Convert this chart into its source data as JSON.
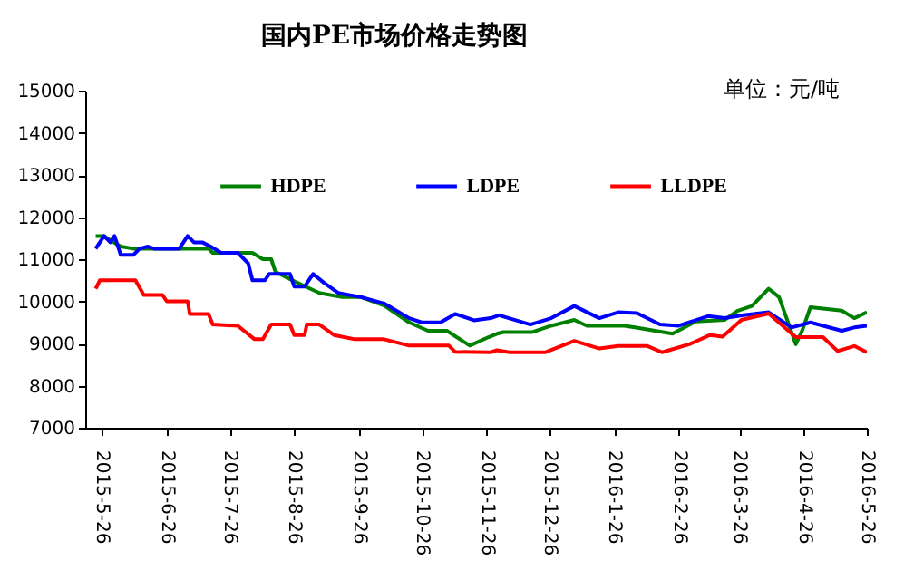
{
  "chart_data": {
    "type": "line",
    "title": "国内PE市场价格走势图",
    "annotations": [
      "单位：元/吨"
    ],
    "xlim": [
      "2015-05-18",
      "2016-05-26"
    ],
    "xticks": [
      {
        "value": "2015-05-26",
        "label": "2015-5-26"
      },
      {
        "value": "2015-06-26",
        "label": "2015-6-26"
      },
      {
        "value": "2015-07-26",
        "label": "2015-7-26"
      },
      {
        "value": "2015-08-26",
        "label": "2015-8-26"
      },
      {
        "value": "2015-09-26",
        "label": "2015-9-26"
      },
      {
        "value": "2015-10-26",
        "label": "2015-10-26"
      },
      {
        "value": "2015-11-26",
        "label": "2015-11-26"
      },
      {
        "value": "2015-12-26",
        "label": "2015-12-26"
      },
      {
        "value": "2016-01-26",
        "label": "2016-1-26"
      },
      {
        "value": "2016-02-26",
        "label": "2016-2-26"
      },
      {
        "value": "2016-03-26",
        "label": "2016-3-26"
      },
      {
        "value": "2016-04-26",
        "label": "2016-4-26"
      },
      {
        "value": "2016-05-26",
        "label": "2016-5-26"
      }
    ],
    "ylim": [
      7000,
      15000
    ],
    "yticks": [
      7000,
      8000,
      9000,
      10000,
      11000,
      12000,
      13000,
      14000,
      15000
    ],
    "grid": false,
    "legend": "top",
    "marker": "none",
    "line_style": "solid",
    "series": [
      {
        "name": "HDPE",
        "color": "#008000",
        "x": [
          "2015-05-23",
          "2015-05-27",
          "2015-05-30",
          "2015-06-04",
          "2015-06-10",
          "2015-07-16",
          "2015-07-18",
          "2015-08-06",
          "2015-08-11",
          "2015-08-15",
          "2015-08-17",
          "2015-08-25",
          "2015-09-07",
          "2015-09-18",
          "2015-09-27",
          "2015-10-08",
          "2015-10-20",
          "2015-10-29",
          "2015-11-07",
          "2015-11-18",
          "2015-11-27",
          "2015-12-01",
          "2015-12-04",
          "2015-12-18",
          "2015-12-27",
          "2016-01-07",
          "2016-01-13",
          "2016-01-31",
          "2016-02-05",
          "2016-02-23",
          "2016-03-05",
          "2016-03-19",
          "2016-03-25",
          "2016-04-01",
          "2016-04-09",
          "2016-04-14",
          "2016-04-22",
          "2016-04-25",
          "2016-04-29",
          "2016-05-14",
          "2016-05-20",
          "2016-05-26"
        ],
        "values": [
          11550,
          11550,
          11450,
          11300,
          11250,
          11250,
          11150,
          11150,
          11000,
          11000,
          10700,
          10500,
          10200,
          10100,
          10100,
          9900,
          9500,
          9300,
          9300,
          8950,
          9150,
          9230,
          9270,
          9270,
          9420,
          9560,
          9420,
          9420,
          9380,
          9230,
          9520,
          9560,
          9770,
          9890,
          10300,
          10100,
          8980,
          9300,
          9860,
          9780,
          9600,
          9740
        ]
      },
      {
        "name": "LDPE",
        "color": "#0000ff",
        "x": [
          "2015-05-23",
          "2015-05-27",
          "2015-05-30",
          "2015-06-01",
          "2015-06-04",
          "2015-06-10",
          "2015-06-13",
          "2015-06-17",
          "2015-06-20",
          "2015-07-02",
          "2015-07-06",
          "2015-07-09",
          "2015-07-13",
          "2015-07-17",
          "2015-07-22",
          "2015-07-30",
          "2015-08-04",
          "2015-08-06",
          "2015-08-12",
          "2015-08-14",
          "2015-08-24",
          "2015-08-26",
          "2015-08-31",
          "2015-09-04",
          "2015-09-09",
          "2015-09-16",
          "2015-09-27",
          "2015-10-08",
          "2015-10-20",
          "2015-10-26",
          "2015-11-04",
          "2015-11-11",
          "2015-11-20",
          "2015-11-28",
          "2015-12-02",
          "2015-12-17",
          "2015-12-27",
          "2016-01-07",
          "2016-01-19",
          "2016-01-28",
          "2016-02-06",
          "2016-02-17",
          "2016-02-26",
          "2016-03-11",
          "2016-03-19",
          "2016-03-28",
          "2016-04-09",
          "2016-04-20",
          "2016-04-29",
          "2016-05-14",
          "2016-05-20",
          "2016-05-26"
        ],
        "values": [
          11250,
          11550,
          11400,
          11550,
          11100,
          11100,
          11250,
          11300,
          11250,
          11250,
          11550,
          11400,
          11400,
          11300,
          11150,
          11150,
          10900,
          10500,
          10500,
          10650,
          10650,
          10350,
          10350,
          10650,
          10450,
          10200,
          10100,
          9950,
          9600,
          9500,
          9500,
          9700,
          9550,
          9600,
          9670,
          9450,
          9600,
          9890,
          9600,
          9740,
          9720,
          9450,
          9420,
          9650,
          9600,
          9670,
          9740,
          9380,
          9500,
          9300,
          9380,
          9420
        ]
      },
      {
        "name": "LLDPE",
        "color": "#ff0000",
        "x": [
          "2015-05-23",
          "2015-05-25",
          "2015-06-11",
          "2015-06-15",
          "2015-06-24",
          "2015-06-26",
          "2015-07-06",
          "2015-07-07",
          "2015-07-16",
          "2015-07-18",
          "2015-07-30",
          "2015-08-07",
          "2015-08-11",
          "2015-08-15",
          "2015-08-24",
          "2015-08-26",
          "2015-08-31",
          "2015-09-01",
          "2015-09-07",
          "2015-09-14",
          "2015-09-24",
          "2015-10-08",
          "2015-10-20",
          "2015-11-08",
          "2015-11-11",
          "2015-11-28",
          "2015-12-01",
          "2015-12-07",
          "2015-12-24",
          "2016-01-07",
          "2016-01-19",
          "2016-01-28",
          "2016-02-11",
          "2016-02-18",
          "2016-03-02",
          "2016-03-12",
          "2016-03-18",
          "2016-03-27",
          "2016-04-09",
          "2016-04-22",
          "2016-05-05",
          "2016-05-12",
          "2016-05-20",
          "2016-05-26"
        ],
        "values": [
          10300,
          10500,
          10500,
          10150,
          10150,
          10000,
          10000,
          9700,
          9700,
          9450,
          9420,
          9100,
          9100,
          9450,
          9450,
          9200,
          9200,
          9450,
          9450,
          9200,
          9100,
          9100,
          8950,
          8950,
          8800,
          8790,
          8840,
          8790,
          8790,
          9060,
          8880,
          8940,
          8940,
          8790,
          8980,
          9200,
          9160,
          9560,
          9710,
          9150,
          9150,
          8820,
          8940,
          8790
        ]
      }
    ]
  }
}
